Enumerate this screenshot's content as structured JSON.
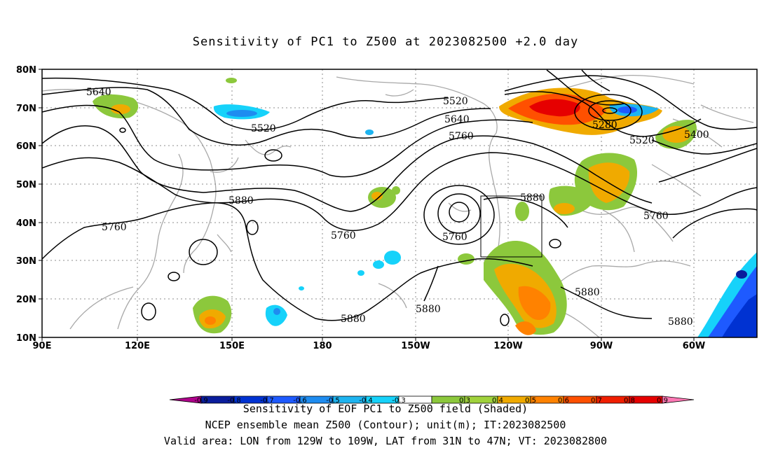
{
  "title": "Sensitivity of PC1 to Z500 at 2023082500 +2.0 day",
  "lat_labels": [
    "80N",
    "70N",
    "60N",
    "50N",
    "40N",
    "30N",
    "20N",
    "10N"
  ],
  "lon_labels": [
    "90E",
    "120E",
    "150E",
    "180",
    "150W",
    "120W",
    "90W",
    "60W"
  ],
  "contour_labels": [
    "5640",
    "5520",
    "5520",
    "5640",
    "5760",
    "5280",
    "5520",
    "5400",
    "5880",
    "5760",
    "5760",
    "5760",
    "5880",
    "5760",
    "5880",
    "5880",
    "5880",
    "5880"
  ],
  "colorbar": {
    "ticks": [
      "-0.9",
      "-0.8",
      "-0.7",
      "-0.6",
      "-0.5",
      "-0.4",
      "-0.3",
      "0.3",
      "0.4",
      "0.5",
      "0.6",
      "0.7",
      "0.8",
      "0.9"
    ],
    "colors": [
      "#b0008c",
      "#0a1d9c",
      "#0032d2",
      "#1e5aff",
      "#1e8cf0",
      "#1eb4f0",
      "#16d2fa",
      "#ffffff",
      "#8cc83c",
      "#a0d23c",
      "#f0aa00",
      "#ff8200",
      "#ff5000",
      "#f01e00",
      "#e60000",
      "#ff78b4"
    ]
  },
  "valid_box": {
    "lon_from": "129W",
    "lon_to": "109W",
    "lat_from": "31N",
    "lat_to": "47N"
  },
  "footer": {
    "line1": "Sensitivity of EOF PC1 to Z500 field (Shaded)",
    "line2": "NCEP ensemble mean Z500 (Contour); unit(m); IT:2023082500",
    "line3": "Valid area: LON from 129W to 109W, LAT from 31N to 47N; VT: 2023082800"
  }
}
